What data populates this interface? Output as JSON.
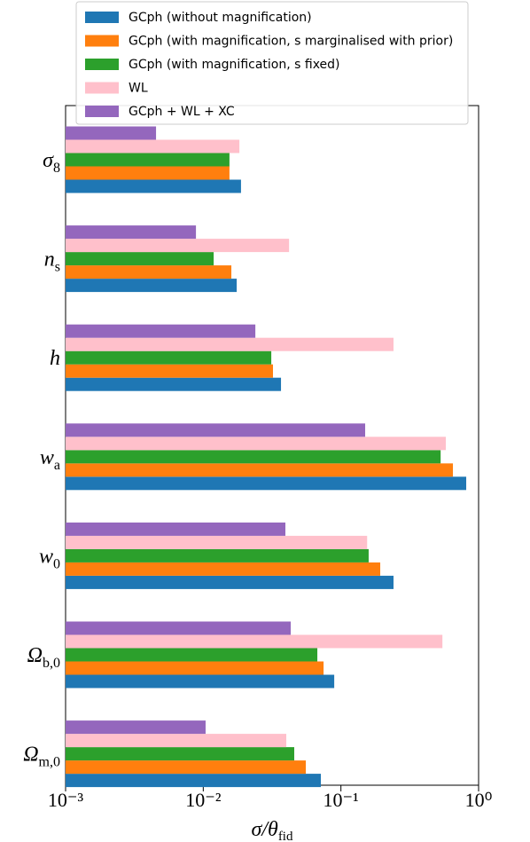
{
  "chart_data": {
    "type": "barh",
    "categories": [
      "σ",
      "n",
      "h",
      "w",
      "w",
      "Ω",
      "Ω"
    ],
    "category_subscripts": [
      "8",
      "s",
      null,
      "a",
      "0",
      "b,0",
      "m,0"
    ],
    "xlabel": "σ/θ",
    "xlabel_sub": "fid",
    "xscale": "log",
    "xlim": [
      0.001,
      1
    ],
    "xticks": [
      {
        "value": 0.001,
        "label": "10⁻³"
      },
      {
        "value": 0.01,
        "label": "10⁻²"
      },
      {
        "value": 0.1,
        "label": "10⁻¹"
      },
      {
        "value": 1,
        "label": "10⁰"
      }
    ],
    "legend": "top",
    "series": [
      {
        "name": "GCph (without magnification)",
        "color": "#1f77b4",
        "values": [
          0.0188,
          0.0175,
          0.0367,
          0.813,
          0.241,
          0.0894,
          0.0715
        ]
      },
      {
        "name": "GCph (with magnification, s marginalised with prior)",
        "color": "#ff7f0e",
        "values": [
          0.0155,
          0.016,
          0.0321,
          0.651,
          0.193,
          0.0748,
          0.0556
        ]
      },
      {
        "name": "GCph (with magnification, s fixed)",
        "color": "#2ca02c",
        "values": [
          0.0155,
          0.0119,
          0.0312,
          0.53,
          0.159,
          0.0674,
          0.0458
        ]
      },
      {
        "name": "WL",
        "color": "#ffc0cb",
        "values": [
          0.0183,
          0.042,
          0.241,
          0.578,
          0.155,
          0.546,
          0.0401
        ]
      },
      {
        "name": "GCph + WL + XC",
        "color": "#9467bd",
        "values": [
          0.00454,
          0.00885,
          0.0239,
          0.15,
          0.0395,
          0.0432,
          0.0104
        ]
      }
    ]
  }
}
